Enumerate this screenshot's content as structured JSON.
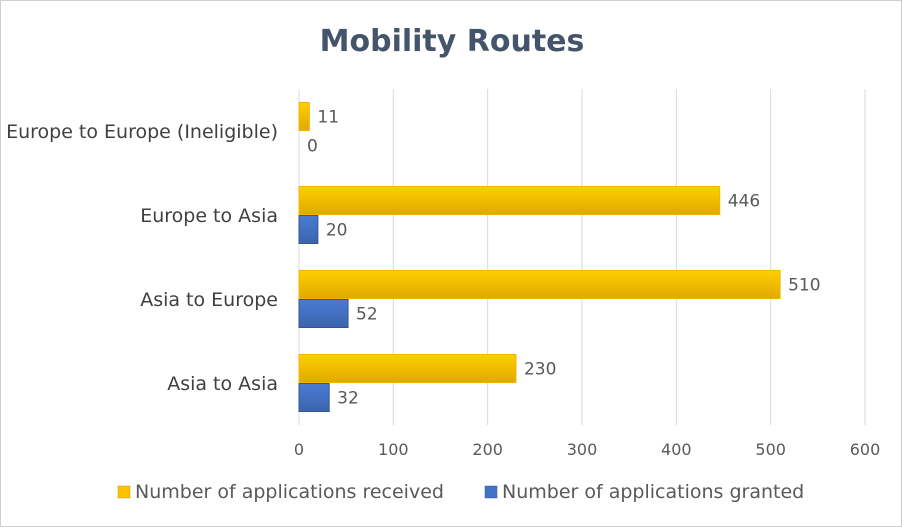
{
  "chart_data": {
    "type": "bar",
    "orientation": "horizontal",
    "title": "Mobility Routes",
    "categories": [
      "Europe to Europe (Ineligible)",
      "Europe to Asia",
      "Asia to Europe",
      "Asia to Asia"
    ],
    "series": [
      {
        "name": "Number of applications received",
        "values": [
          11,
          446,
          510,
          230
        ],
        "color": "#ffc000"
      },
      {
        "name": "Number of applications granted",
        "values": [
          0,
          20,
          52,
          32
        ],
        "color": "#4472c4"
      }
    ],
    "xlim": [
      0,
      600
    ],
    "xticks": [
      0,
      100,
      200,
      300,
      400,
      500,
      600
    ],
    "grid": true,
    "data_labels": true,
    "legend_position": "bottom"
  }
}
